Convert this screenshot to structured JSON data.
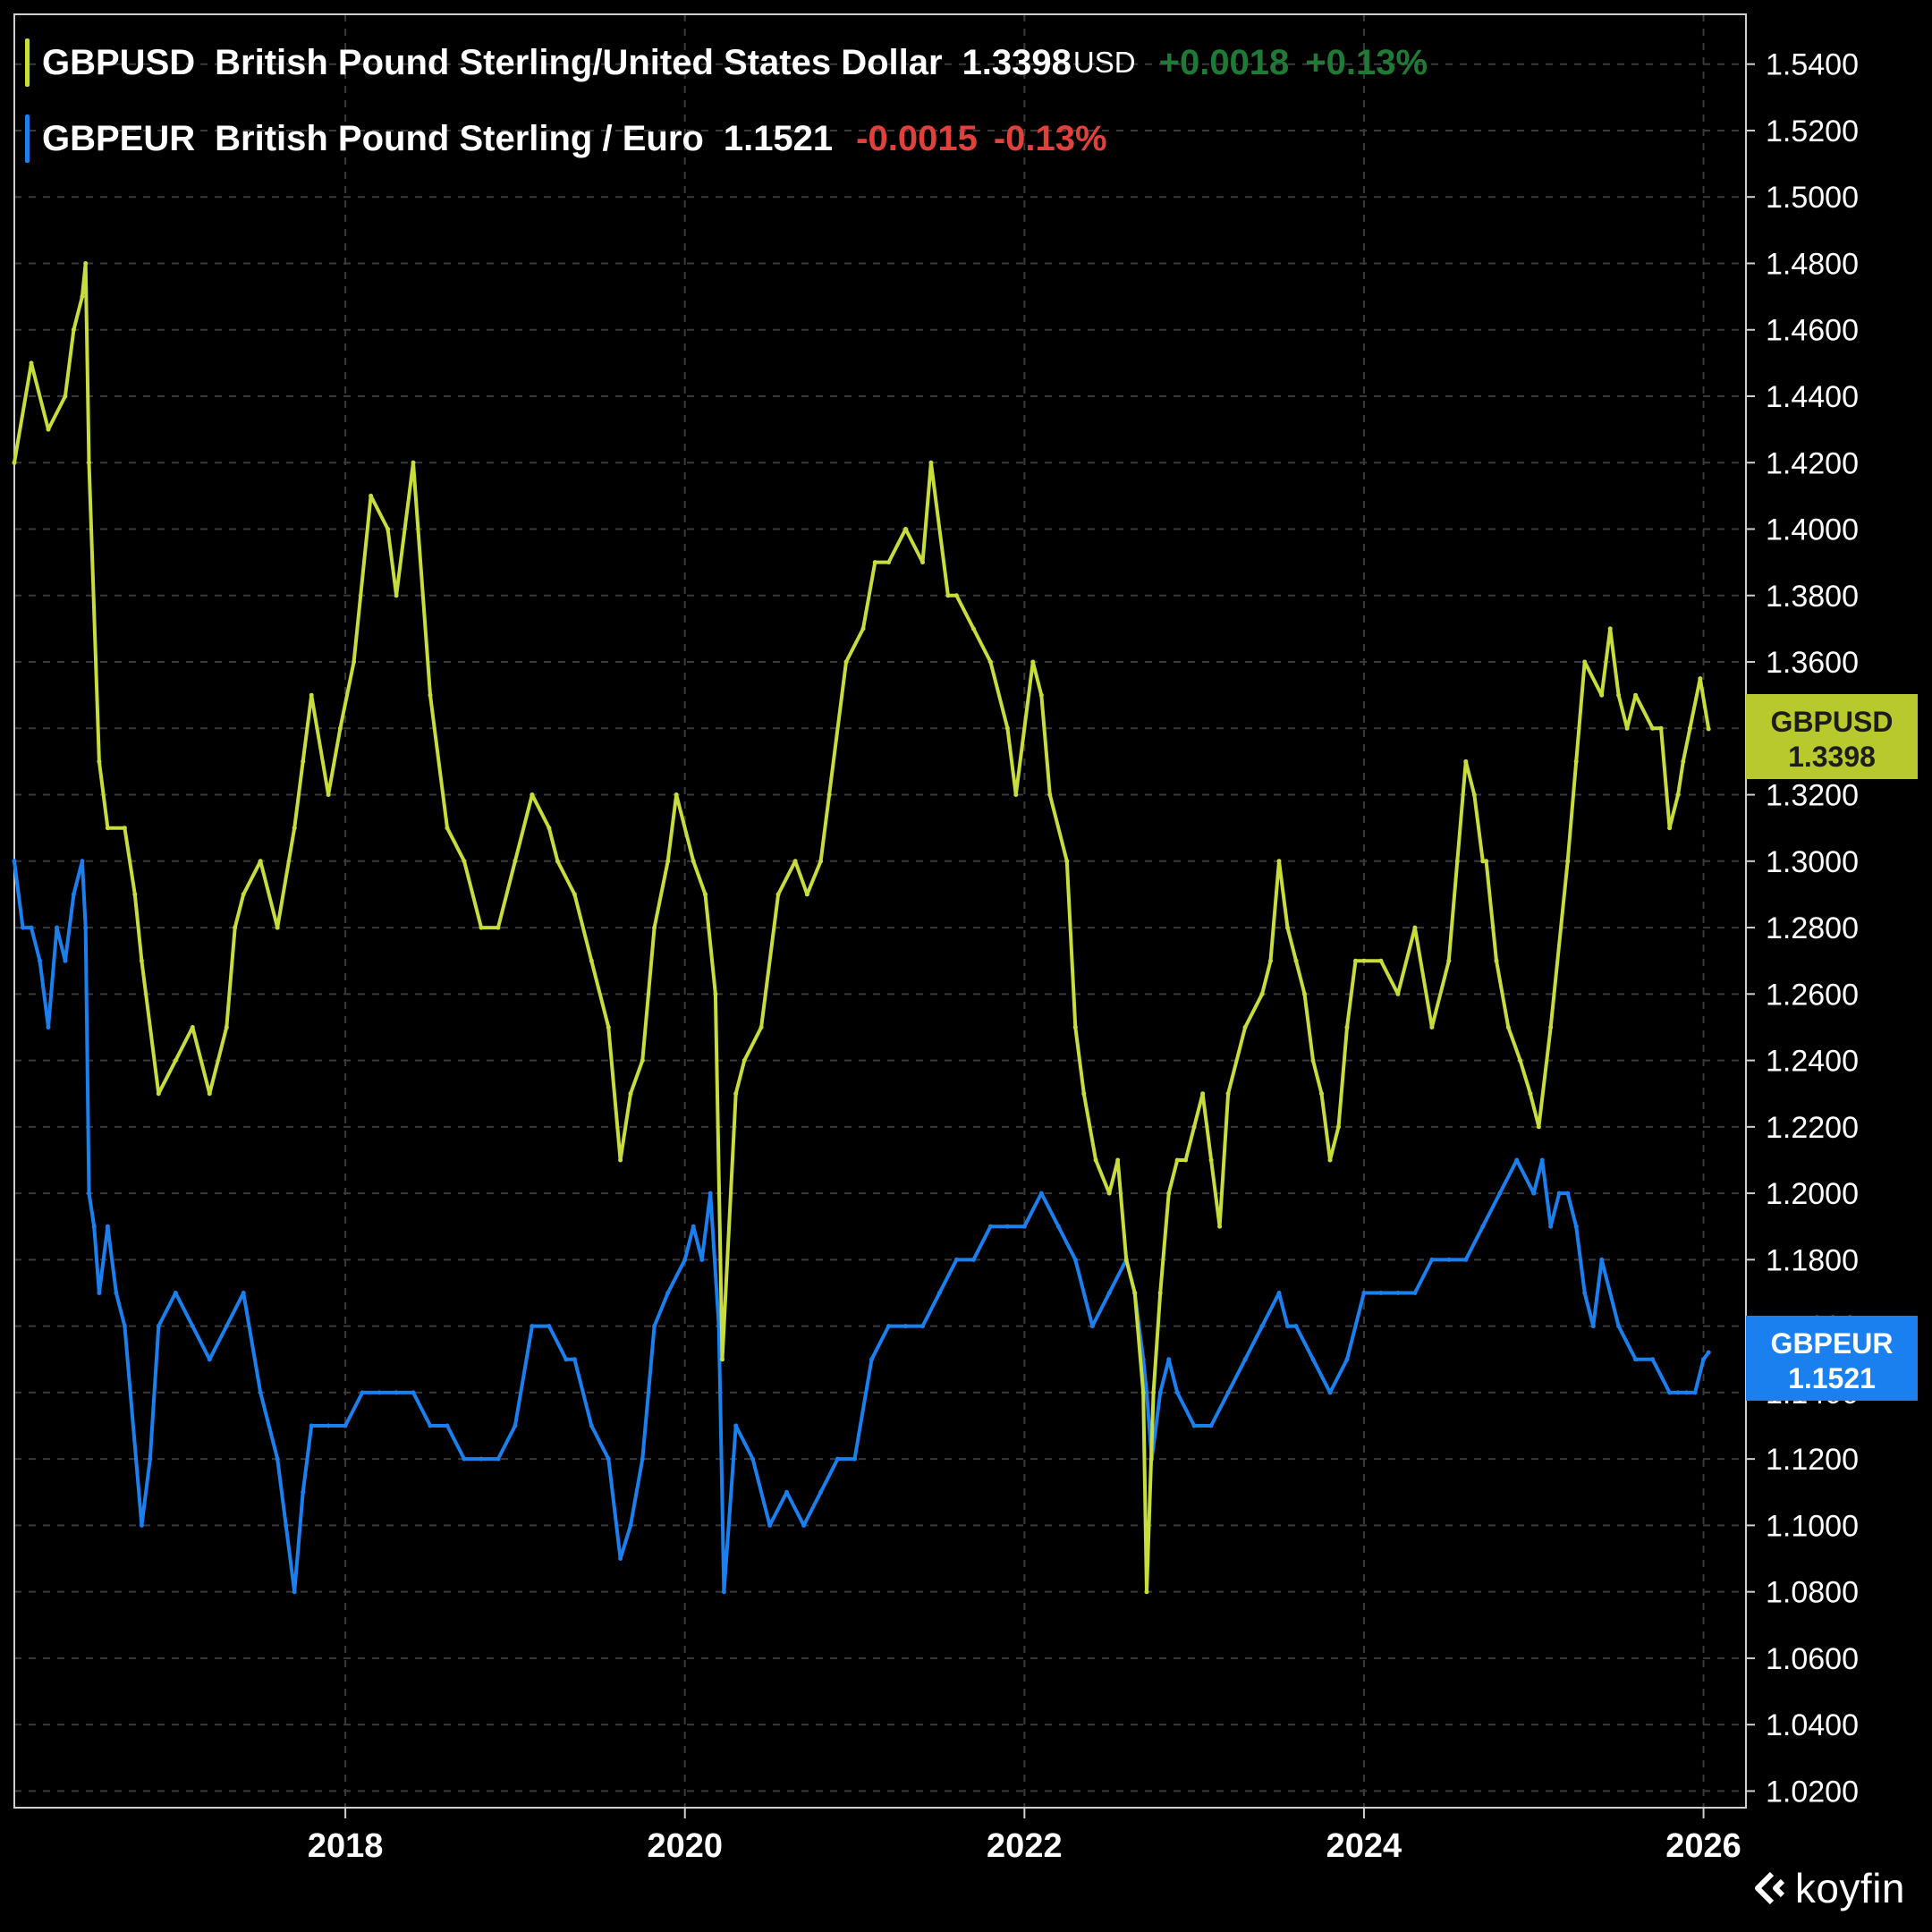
{
  "legend": {
    "series1": {
      "symbol": "GBPUSD",
      "name": "British Pound Sterling/United States Dollar",
      "price": "1.3398",
      "unit": "USD",
      "change": "+0.0018",
      "change_pct": "+0.13%"
    },
    "series2": {
      "symbol": "GBPEUR",
      "name": "British Pound Sterling / Euro",
      "price": "1.1521",
      "change": "-0.0015",
      "change_pct": "-0.13%"
    }
  },
  "badges": {
    "gbpusd": {
      "label": "GBPUSD",
      "value": "1.3398"
    },
    "gbpeur": {
      "label": "GBPEUR",
      "value": "1.1521"
    }
  },
  "brand": "koyfin",
  "colors": {
    "gbpusd": "#c8dc3c",
    "gbpeur": "#1a80f0",
    "gbpeur_badge": "#1a80f0",
    "gbpusd_badge": "#b8c92e",
    "grid": "#3a3a3a",
    "text": "#ffffff",
    "positive": "#1e7a35",
    "negative": "#e0423b"
  },
  "chart_data": {
    "type": "line",
    "title": "",
    "xlabel": "",
    "ylabel": "",
    "xlim": [
      2016.05,
      2026.25
    ],
    "ylim": [
      1.015,
      1.555
    ],
    "x_ticks": [
      2018,
      2020,
      2022,
      2024,
      2026
    ],
    "x_tick_labels": [
      "2018",
      "2020",
      "2022",
      "2024",
      "2026"
    ],
    "y_ticks": [
      1.02,
      1.04,
      1.06,
      1.08,
      1.1,
      1.12,
      1.14,
      1.16,
      1.18,
      1.2,
      1.22,
      1.24,
      1.26,
      1.28,
      1.3,
      1.32,
      1.34,
      1.36,
      1.38,
      1.4,
      1.42,
      1.44,
      1.46,
      1.48,
      1.5,
      1.52,
      1.54
    ],
    "y_tick_labels": [
      "1.0200",
      "1.0400",
      "1.0600",
      "1.0800",
      "1.1000",
      "1.1200",
      "1.1400",
      "1.1600",
      "1.1800",
      "1.2000",
      "1.2200",
      "1.2400",
      "1.2600",
      "1.2800",
      "1.3000",
      "1.3200",
      "1.3400",
      "1.3600",
      "1.3800",
      "1.4000",
      "1.4200",
      "1.4400",
      "1.4600",
      "1.4800",
      "1.5000",
      "1.5200",
      "1.5400"
    ],
    "grid": true,
    "series": [
      {
        "name": "GBPUSD",
        "x": [
          2016.05,
          2016.15,
          2016.25,
          2016.35,
          2016.4,
          2016.45,
          2016.47,
          2016.49,
          2016.55,
          2016.6,
          2016.7,
          2016.76,
          2016.8,
          2016.9,
          2017.0,
          2017.1,
          2017.2,
          2017.3,
          2017.35,
          2017.4,
          2017.5,
          2017.6,
          2017.7,
          2017.75,
          2017.8,
          2017.9,
          2017.97,
          2018.05,
          2018.15,
          2018.25,
          2018.3,
          2018.4,
          2018.5,
          2018.6,
          2018.7,
          2018.8,
          2018.9,
          2019.0,
          2019.1,
          2019.2,
          2019.25,
          2019.35,
          2019.45,
          2019.55,
          2019.62,
          2019.68,
          2019.75,
          2019.82,
          2019.9,
          2019.95,
          2020.05,
          2020.12,
          2020.18,
          2020.22,
          2020.3,
          2020.35,
          2020.45,
          2020.55,
          2020.65,
          2020.72,
          2020.8,
          2020.85,
          2020.95,
          2021.05,
          2021.12,
          2021.2,
          2021.3,
          2021.4,
          2021.45,
          2021.55,
          2021.6,
          2021.7,
          2021.8,
          2021.9,
          2021.95,
          2022.05,
          2022.1,
          2022.15,
          2022.25,
          2022.3,
          2022.35,
          2022.42,
          2022.5,
          2022.55,
          2022.6,
          2022.65,
          2022.7,
          2022.72,
          2022.76,
          2022.8,
          2022.85,
          2022.9,
          2022.95,
          2023.0,
          2023.05,
          2023.1,
          2023.15,
          2023.2,
          2023.3,
          2023.4,
          2023.45,
          2023.5,
          2023.55,
          2023.6,
          2023.65,
          2023.7,
          2023.75,
          2023.8,
          2023.85,
          2023.9,
          2023.95,
          2024.0,
          2024.1,
          2024.2,
          2024.3,
          2024.4,
          2024.5,
          2024.55,
          2024.6,
          2024.65,
          2024.7,
          2024.72,
          2024.78,
          2024.85,
          2024.92,
          2024.98,
          2025.03,
          2025.1,
          2025.2,
          2025.25,
          2025.3,
          2025.4,
          2025.45,
          2025.5,
          2025.55,
          2025.6,
          2025.7,
          2025.75,
          2025.8,
          2025.85,
          2025.88,
          2025.92,
          2025.98,
          2026.03
        ],
        "values": [
          1.42,
          1.45,
          1.43,
          1.44,
          1.46,
          1.47,
          1.48,
          1.42,
          1.33,
          1.31,
          1.31,
          1.29,
          1.27,
          1.23,
          1.24,
          1.25,
          1.23,
          1.25,
          1.28,
          1.29,
          1.3,
          1.28,
          1.31,
          1.33,
          1.35,
          1.32,
          1.34,
          1.36,
          1.41,
          1.4,
          1.38,
          1.42,
          1.35,
          1.31,
          1.3,
          1.28,
          1.28,
          1.3,
          1.32,
          1.31,
          1.3,
          1.29,
          1.27,
          1.25,
          1.21,
          1.23,
          1.24,
          1.28,
          1.3,
          1.32,
          1.3,
          1.29,
          1.26,
          1.15,
          1.23,
          1.24,
          1.25,
          1.29,
          1.3,
          1.29,
          1.3,
          1.32,
          1.36,
          1.37,
          1.39,
          1.39,
          1.4,
          1.39,
          1.42,
          1.38,
          1.38,
          1.37,
          1.36,
          1.34,
          1.32,
          1.36,
          1.35,
          1.32,
          1.3,
          1.25,
          1.23,
          1.21,
          1.2,
          1.21,
          1.18,
          1.17,
          1.14,
          1.08,
          1.14,
          1.17,
          1.2,
          1.21,
          1.21,
          1.22,
          1.23,
          1.21,
          1.19,
          1.23,
          1.25,
          1.26,
          1.27,
          1.3,
          1.28,
          1.27,
          1.26,
          1.24,
          1.23,
          1.21,
          1.22,
          1.25,
          1.27,
          1.27,
          1.27,
          1.26,
          1.28,
          1.25,
          1.27,
          1.3,
          1.33,
          1.32,
          1.3,
          1.3,
          1.27,
          1.25,
          1.24,
          1.23,
          1.22,
          1.25,
          1.3,
          1.33,
          1.36,
          1.35,
          1.37,
          1.35,
          1.34,
          1.35,
          1.34,
          1.34,
          1.31,
          1.32,
          1.33,
          1.34,
          1.355,
          1.3398
        ]
      },
      {
        "name": "GBPEUR",
        "x": [
          2016.05,
          2016.1,
          2016.15,
          2016.2,
          2016.25,
          2016.3,
          2016.35,
          2016.4,
          2016.45,
          2016.47,
          2016.49,
          2016.52,
          2016.55,
          2016.6,
          2016.65,
          2016.7,
          2016.8,
          2016.85,
          2016.9,
          2017.0,
          2017.1,
          2017.2,
          2017.3,
          2017.4,
          2017.5,
          2017.6,
          2017.65,
          2017.7,
          2017.75,
          2017.8,
          2017.9,
          2018.0,
          2018.1,
          2018.2,
          2018.3,
          2018.4,
          2018.5,
          2018.6,
          2018.7,
          2018.8,
          2018.9,
          2019.0,
          2019.1,
          2019.2,
          2019.3,
          2019.35,
          2019.45,
          2019.55,
          2019.62,
          2019.68,
          2019.75,
          2019.82,
          2019.9,
          2020.0,
          2020.05,
          2020.1,
          2020.15,
          2020.2,
          2020.23,
          2020.3,
          2020.4,
          2020.5,
          2020.6,
          2020.7,
          2020.8,
          2020.9,
          2021.0,
          2021.1,
          2021.2,
          2021.3,
          2021.4,
          2021.5,
          2021.6,
          2021.7,
          2021.8,
          2021.9,
          2022.0,
          2022.1,
          2022.2,
          2022.3,
          2022.4,
          2022.5,
          2022.6,
          2022.65,
          2022.7,
          2022.72,
          2022.75,
          2022.8,
          2022.85,
          2022.9,
          2023.0,
          2023.1,
          2023.2,
          2023.3,
          2023.4,
          2023.5,
          2023.55,
          2023.6,
          2023.7,
          2023.8,
          2023.9,
          2024.0,
          2024.1,
          2024.2,
          2024.3,
          2024.4,
          2024.5,
          2024.6,
          2024.7,
          2024.8,
          2024.9,
          2025.0,
          2025.05,
          2025.1,
          2025.15,
          2025.2,
          2025.25,
          2025.3,
          2025.35,
          2025.4,
          2025.5,
          2025.6,
          2025.7,
          2025.8,
          2025.85,
          2025.9,
          2025.95,
          2026.0,
          2026.03
        ],
        "values": [
          1.3,
          1.28,
          1.28,
          1.27,
          1.25,
          1.28,
          1.27,
          1.29,
          1.3,
          1.28,
          1.2,
          1.19,
          1.17,
          1.19,
          1.17,
          1.16,
          1.1,
          1.12,
          1.16,
          1.17,
          1.16,
          1.15,
          1.16,
          1.17,
          1.14,
          1.12,
          1.1,
          1.08,
          1.11,
          1.13,
          1.13,
          1.13,
          1.14,
          1.14,
          1.14,
          1.14,
          1.13,
          1.13,
          1.12,
          1.12,
          1.12,
          1.13,
          1.16,
          1.16,
          1.15,
          1.15,
          1.13,
          1.12,
          1.09,
          1.1,
          1.12,
          1.16,
          1.17,
          1.18,
          1.19,
          1.18,
          1.2,
          1.16,
          1.08,
          1.13,
          1.12,
          1.1,
          1.11,
          1.1,
          1.11,
          1.12,
          1.12,
          1.15,
          1.16,
          1.16,
          1.16,
          1.17,
          1.18,
          1.18,
          1.19,
          1.19,
          1.19,
          1.2,
          1.19,
          1.18,
          1.16,
          1.17,
          1.18,
          1.17,
          1.15,
          1.14,
          1.12,
          1.14,
          1.15,
          1.14,
          1.13,
          1.13,
          1.14,
          1.15,
          1.16,
          1.17,
          1.16,
          1.16,
          1.15,
          1.14,
          1.15,
          1.17,
          1.17,
          1.17,
          1.17,
          1.18,
          1.18,
          1.18,
          1.19,
          1.2,
          1.21,
          1.2,
          1.21,
          1.19,
          1.2,
          1.2,
          1.19,
          1.17,
          1.16,
          1.18,
          1.16,
          1.15,
          1.15,
          1.14,
          1.14,
          1.14,
          1.14,
          1.15,
          1.1521
        ]
      }
    ]
  }
}
